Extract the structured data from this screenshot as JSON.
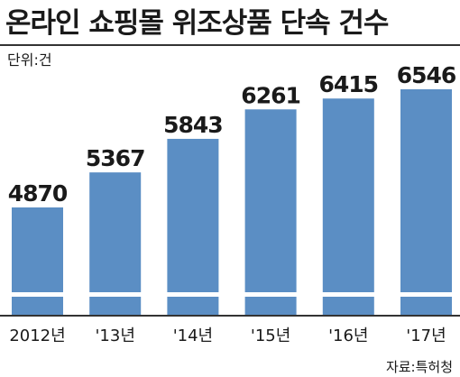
{
  "title": "온라인 쇼핑몰 위조상품 단속 건수",
  "unit": "단위:건",
  "source": "자료:특허청",
  "colors": {
    "bar": "#5b8ec4",
    "baseline": "#333333",
    "text": "#1a1a1a"
  },
  "chart_data": {
    "type": "bar",
    "categories": [
      "2012년",
      "'13년",
      "'14년",
      "'15년",
      "'16년",
      "'17년"
    ],
    "values": [
      4870,
      5367,
      5843,
      6261,
      6415,
      6546
    ],
    "data_labels": [
      "4870",
      "5367",
      "5843",
      "6261",
      "6415",
      "6546"
    ],
    "title": "온라인 쇼핑몰 위조상품 단속 건수",
    "xlabel": "",
    "ylabel": "",
    "axis_break": true,
    "grid": false,
    "legend": "none"
  }
}
